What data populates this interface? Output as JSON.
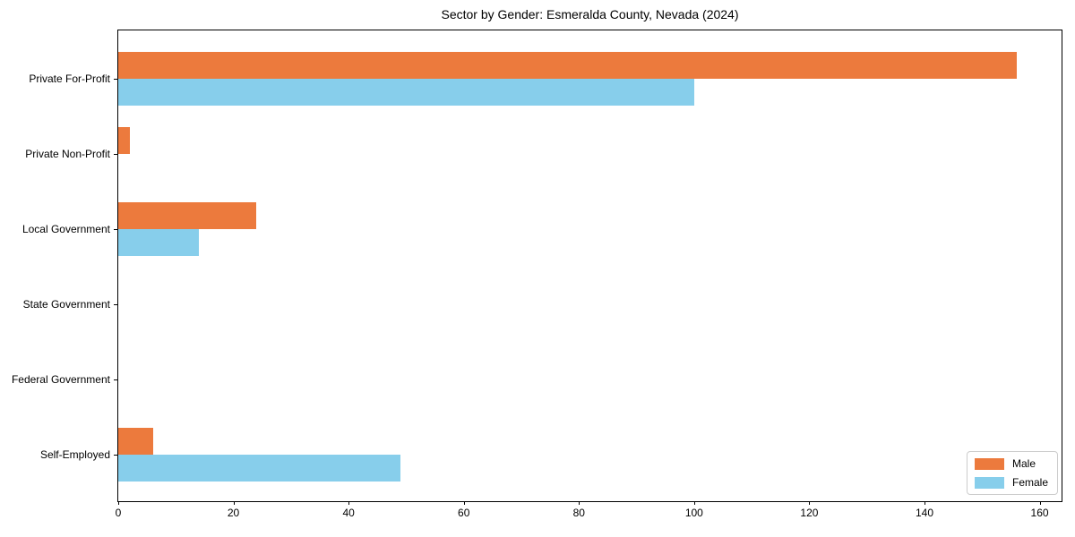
{
  "title": "Sector by Gender: Esmeralda County, Nevada (2024)",
  "chart_data": {
    "type": "bar",
    "orientation": "horizontal",
    "title": "Sector by Gender: Esmeralda County, Nevada (2024)",
    "categories": [
      "Private For-Profit",
      "Private Non-Profit",
      "Local Government",
      "State Government",
      "Federal Government",
      "Self-Employed"
    ],
    "series": [
      {
        "name": "Male",
        "color": "#ec7a3d",
        "values": [
          156,
          2,
          24,
          0,
          0,
          6
        ]
      },
      {
        "name": "Female",
        "color": "#87ceeb",
        "values": [
          100,
          0,
          14,
          0,
          0,
          49
        ]
      }
    ],
    "xlabel": "",
    "ylabel": "",
    "xlim": [
      0,
      163.8
    ],
    "xticks": [
      0,
      20,
      40,
      60,
      80,
      100,
      120,
      140,
      160
    ],
    "grid": false,
    "legend_position": "lower right"
  }
}
